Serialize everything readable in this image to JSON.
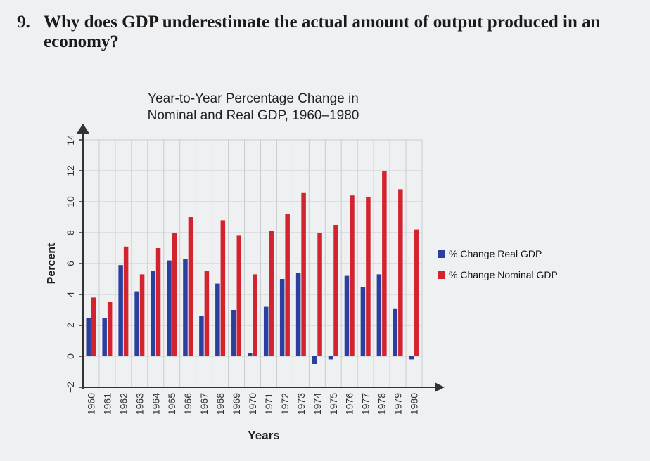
{
  "question": {
    "number": "9.",
    "text": "Why does GDP underestimate the actual amount of output produced in an economy?"
  },
  "chart_data": {
    "type": "bar",
    "title": "Year-to-Year Percentage Change in Nominal and Real GDP, 1960–1980",
    "title_lines": [
      "Year-to-Year Percentage Change in",
      "Nominal and Real GDP, 1960–1980"
    ],
    "xlabel": "Years",
    "ylabel": "Percent",
    "ylim": [
      -2,
      14
    ],
    "yticks": [
      -2,
      0,
      2,
      4,
      6,
      8,
      10,
      12,
      14
    ],
    "grid": true,
    "legend_position": "right",
    "categories": [
      "1960",
      "1961",
      "1962",
      "1963",
      "1964",
      "1965",
      "1966",
      "1967",
      "1968",
      "1969",
      "1970",
      "1971",
      "1972",
      "1973",
      "1974",
      "1975",
      "1976",
      "1977",
      "1978",
      "1979",
      "1980"
    ],
    "series": [
      {
        "name": "% Change Real GDP",
        "color": "#2b3f9e",
        "values": [
          2.5,
          2.5,
          5.9,
          4.2,
          5.5,
          6.2,
          6.3,
          2.6,
          4.7,
          3.0,
          0.2,
          3.2,
          5.0,
          5.4,
          -0.5,
          -0.2,
          5.2,
          4.5,
          5.3,
          3.1,
          -0.2
        ]
      },
      {
        "name": "% Change Nominal GDP",
        "color": "#d2232e",
        "values": [
          3.8,
          3.5,
          7.1,
          5.3,
          7.0,
          8.0,
          9.0,
          5.5,
          8.8,
          7.8,
          5.3,
          8.1,
          9.2,
          10.6,
          8.0,
          8.5,
          10.4,
          10.3,
          12.0,
          10.8,
          8.2
        ]
      }
    ]
  }
}
